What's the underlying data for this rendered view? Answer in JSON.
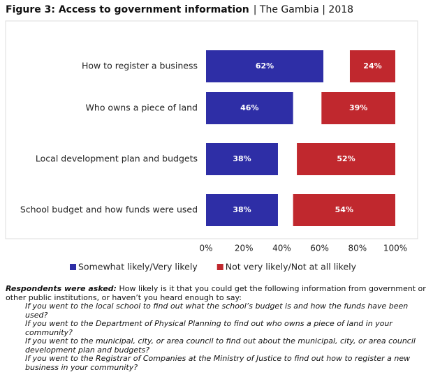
{
  "chart_data": {
    "type": "diverging_bar",
    "title": "Figure 3: Access to government information",
    "subtitle": "| The Gambia | 2018",
    "categories": [
      "How to register a business",
      "Who owns a piece of land",
      "Local development plan and budgets",
      "School budget and how funds were used"
    ],
    "series": [
      {
        "name": "Somewhat likely/Very likely",
        "color": "#2e2ea6",
        "values": [
          62,
          46,
          38,
          38
        ],
        "value_labels": [
          "62%",
          "46%",
          "38%",
          "38%"
        ]
      },
      {
        "name": "Not very likely/Not at all likely",
        "color": "#c0282e",
        "values": [
          24,
          39,
          52,
          54
        ],
        "value_labels": [
          "24%",
          "39%",
          "52%",
          "54%"
        ]
      }
    ],
    "xlim": [
      0,
      100
    ],
    "xticks": [
      {
        "value": 0,
        "label": "0%"
      },
      {
        "value": 20,
        "label": "20%"
      },
      {
        "value": 40,
        "label": "40%"
      },
      {
        "value": 60,
        "label": "60%"
      },
      {
        "value": 80,
        "label": "80%"
      },
      {
        "value": 100,
        "label": "100%"
      }
    ],
    "legend": "bottom",
    "note_label": "Respondents were asked:",
    "note": "How likely is it that you could get the following information from government or other public institutions, or haven’t you heard enough to say:",
    "questions": [
      "If you went to the local school to find out what the school’s budget is and how the funds have been used?",
      "If you went to the Department of Physical Planning to find out who owns a piece of land in your community?",
      "If you went to the municipal, city, or area council to find out about the municipal, city, or area council development plan and budgets?",
      "If you went to the Registrar of Companies at the Ministry of Justice to find out how to register a new business in your community?"
    ]
  }
}
